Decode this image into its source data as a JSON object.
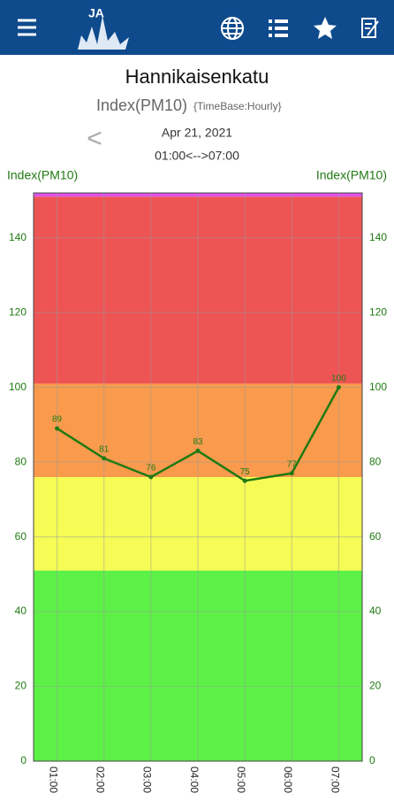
{
  "app_bar": {
    "logo_text": "JA"
  },
  "chart_data": {
    "type": "line",
    "title": "Hannikaisenkatu",
    "subtitle": "Index(PM10)",
    "timebase": "{TimeBase:Hourly}",
    "nav_prev": "<",
    "date": "Apr 21, 2021",
    "time_range": "01:00<-->07:00",
    "y_label": "Index(PM10)",
    "y2_label": "Index(PM10)",
    "categories": [
      "01:00",
      "02:00",
      "03:00",
      "04:00",
      "05:00",
      "06:00",
      "07:00"
    ],
    "values": [
      89,
      81,
      76,
      83,
      75,
      77,
      100
    ],
    "color": "#1f7a12",
    "ylim": [
      0,
      152
    ],
    "yticks": [
      0,
      20,
      40,
      60,
      80,
      100,
      120,
      140
    ],
    "grid": true,
    "bands": [
      {
        "from": 0,
        "to": 51,
        "color": "#5df047"
      },
      {
        "from": 51,
        "to": 76,
        "color": "#f6fb55"
      },
      {
        "from": 76,
        "to": 101,
        "color": "#f99a4d"
      },
      {
        "from": 101,
        "to": 151,
        "color": "#ee5454"
      },
      {
        "from": 151,
        "to": 152,
        "color": "#e052e8"
      }
    ]
  }
}
